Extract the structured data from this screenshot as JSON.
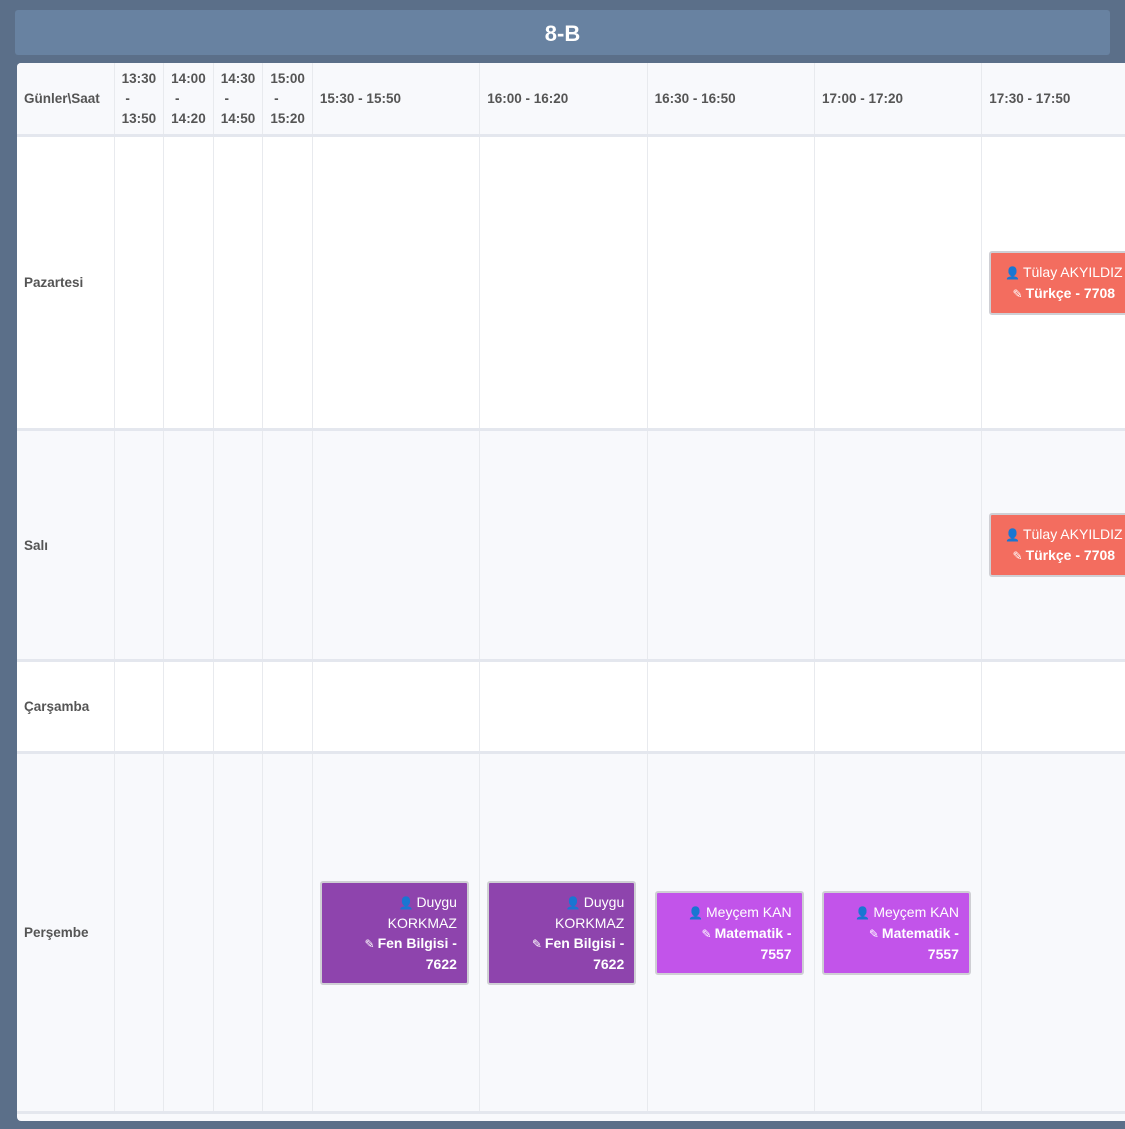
{
  "title": "8-B",
  "header": {
    "corner": "Günler\\Saat",
    "slots": [
      "13:30 - 13:50",
      "14:00 - 14:20",
      "14:30 - 14:50",
      "15:00 - 15:20",
      "15:30 - 15:50",
      "16:00 - 16:20",
      "16:30 - 16:50",
      "17:00 - 17:20",
      "17:30 - 17:50"
    ],
    "slots_wrapped": [
      [
        "13:30",
        "-",
        "13:50"
      ],
      [
        "14:00",
        "-",
        "14:20"
      ],
      [
        "14:30",
        "-",
        "14:50"
      ],
      [
        "15:00",
        "-",
        "15:20"
      ]
    ]
  },
  "days": [
    "Pazartesi",
    "Salı",
    "Çarşamba",
    "Perşembe"
  ],
  "lessons": {
    "pazartesi_1730": {
      "teacher": "Tülay AKYILDIZ",
      "subject": "Türkçe - 7708",
      "color": "#f36d5f"
    },
    "sali_1730": {
      "teacher": "Tülay AKYILDIZ",
      "subject": "Türkçe - 7708",
      "color": "#f36d5f"
    },
    "persembe_1530": {
      "teacher": "Duygu KORKMAZ",
      "subject": "Fen Bilgisi - 7622",
      "color": "#8e44ad"
    },
    "persembe_1600": {
      "teacher": "Duygu KORKMAZ",
      "subject": "Fen Bilgisi - 7622",
      "color": "#8e44ad"
    },
    "persembe_1630": {
      "teacher": "Meyçem KAN",
      "subject": "Matematik - 7557",
      "color": "#c254ea"
    },
    "persembe_1700": {
      "teacher": "Meyçem KAN",
      "subject": "Matematik - 7557",
      "color": "#c254ea"
    }
  },
  "icons": {
    "teacher": "user-icon",
    "subject": "edit-icon"
  }
}
